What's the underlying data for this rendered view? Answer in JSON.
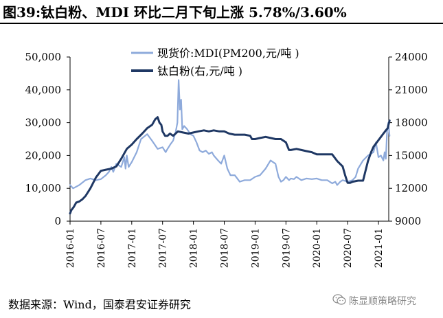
{
  "title": "图39:钛白粉、MDI 环比二月下旬上涨 5.78%/3.60%",
  "source": "数据来源：Wind，国泰君安证券研究",
  "watermark": "陈显顺策略研究",
  "watermark_icon": "wechat-icon",
  "colors": {
    "mdi": "#8eaadb",
    "tio2": "#1f3864"
  },
  "chart_data": {
    "type": "line",
    "x_tick_labels": [
      "2016-01",
      "2016-07",
      "2017-01",
      "2017-07",
      "2018-01",
      "2018-07",
      "2019-01",
      "2019-07",
      "2020-01",
      "2020-07",
      "2021-01"
    ],
    "xlim": [
      "2016-01",
      "2021-03"
    ],
    "y_left": {
      "ylim": [
        0,
        50000
      ],
      "ticks": [
        "0",
        "10,000",
        "20,000",
        "30,000",
        "40,000",
        "50,000"
      ]
    },
    "y_right": {
      "ylim": [
        9000,
        24000
      ],
      "ticks": [
        "9000",
        "12000",
        "15000",
        "18000",
        "21000",
        "24000"
      ]
    },
    "legend_position": "top-center",
    "grid": false,
    "series": [
      {
        "name": "现货价:MDI(PM200,元/吨 )",
        "axis": "left",
        "x": [
          2016.0,
          2016.05,
          2016.1,
          2016.15,
          2016.25,
          2016.33,
          2016.42,
          2016.5,
          2016.58,
          2016.63,
          2016.67,
          2016.7,
          2016.75,
          2016.83,
          2016.88,
          2016.9,
          2016.92,
          2016.95,
          2017.0,
          2017.08,
          2017.15,
          2017.25,
          2017.33,
          2017.42,
          2017.5,
          2017.55,
          2017.58,
          2017.63,
          2017.67,
          2017.71,
          2017.74,
          2017.76,
          2017.78,
          2017.8,
          2017.82,
          2017.85,
          2017.9,
          2017.95,
          2018.0,
          2018.05,
          2018.1,
          2018.15,
          2018.2,
          2018.25,
          2018.3,
          2018.33,
          2018.4,
          2018.45,
          2018.5,
          2018.55,
          2018.6,
          2018.67,
          2018.75,
          2018.83,
          2018.92,
          2019.0,
          2019.08,
          2019.17,
          2019.25,
          2019.33,
          2019.38,
          2019.42,
          2019.46,
          2019.5,
          2019.55,
          2019.58,
          2019.63,
          2019.67,
          2019.75,
          2019.83,
          2019.92,
          2020.0,
          2020.08,
          2020.17,
          2020.25,
          2020.3,
          2020.33,
          2020.38,
          2020.42,
          2020.5,
          2020.58,
          2020.63,
          2020.67,
          2020.75,
          2020.83,
          2020.92,
          2020.96,
          2021.0,
          2021.04,
          2021.08,
          2021.1,
          2021.12,
          2021.14,
          2021.16,
          2021.18
        ],
        "y": [
          11000,
          10000,
          10500,
          11000,
          12500,
          13000,
          12500,
          12800,
          14000,
          15000,
          16500,
          15000,
          17500,
          16500,
          19500,
          16000,
          20000,
          16500,
          18000,
          21000,
          25000,
          26500,
          24500,
          22000,
          22500,
          21000,
          22000,
          23500,
          24500,
          27000,
          30000,
          43000,
          34000,
          37000,
          28000,
          29000,
          28000,
          26500,
          26000,
          24000,
          21500,
          21000,
          21500,
          20500,
          21000,
          20000,
          18500,
          17500,
          20000,
          16000,
          14000,
          14000,
          12000,
          12500,
          12500,
          13500,
          14000,
          16000,
          18500,
          17500,
          13500,
          12000,
          12500,
          13500,
          12500,
          13000,
          12800,
          13500,
          12500,
          13000,
          12800,
          13000,
          12500,
          12500,
          11500,
          12000,
          11000,
          12000,
          12500,
          12000,
          12500,
          13500,
          16000,
          18500,
          20000,
          21000,
          24000,
          19500,
          20000,
          18500,
          21000,
          19000,
          27500,
          30000,
          26000
        ]
      },
      {
        "name": "钛白粉(右,元/吨 )",
        "axis": "right",
        "x": [
          2016.0,
          2016.02,
          2016.06,
          2016.1,
          2016.15,
          2016.2,
          2016.25,
          2016.33,
          2016.42,
          2016.5,
          2016.58,
          2016.67,
          2016.75,
          2016.83,
          2016.92,
          2017.0,
          2017.08,
          2017.17,
          2017.25,
          2017.33,
          2017.38,
          2017.42,
          2017.45,
          2017.48,
          2017.5,
          2017.54,
          2017.58,
          2017.62,
          2017.67,
          2017.75,
          2017.83,
          2017.92,
          2018.0,
          2018.08,
          2018.17,
          2018.25,
          2018.33,
          2018.42,
          2018.5,
          2018.58,
          2018.67,
          2018.75,
          2018.83,
          2018.92,
          2018.95,
          2019.0,
          2019.08,
          2019.17,
          2019.25,
          2019.33,
          2019.42,
          2019.5,
          2019.55,
          2019.58,
          2019.67,
          2019.75,
          2019.83,
          2019.92,
          2020.0,
          2020.08,
          2020.17,
          2020.25,
          2020.33,
          2020.42,
          2020.46,
          2020.5,
          2020.54,
          2020.58,
          2020.67,
          2020.75,
          2020.83,
          2020.88,
          2020.92,
          2021.0,
          2021.04,
          2021.08,
          2021.12,
          2021.15,
          2021.18
        ],
        "y": [
          9700,
          10000,
          10300,
          10700,
          10800,
          11000,
          11300,
          12000,
          13000,
          13600,
          13700,
          13800,
          14000,
          14700,
          15600,
          16000,
          16500,
          17000,
          17500,
          17800,
          18300,
          18500,
          18000,
          17800,
          17200,
          16800,
          16800,
          17000,
          16800,
          17200,
          17100,
          17000,
          17100,
          17200,
          17300,
          17200,
          17300,
          17200,
          17200,
          17000,
          16900,
          16900,
          16900,
          16800,
          16500,
          16500,
          16600,
          16700,
          16600,
          16500,
          16500,
          16200,
          15500,
          15500,
          15600,
          15500,
          15400,
          15300,
          15100,
          15100,
          15100,
          15100,
          14500,
          14000,
          13200,
          12500,
          12500,
          12600,
          12700,
          12700,
          14500,
          15300,
          15800,
          16400,
          16700,
          17000,
          17300,
          17500,
          18200
        ]
      }
    ]
  }
}
